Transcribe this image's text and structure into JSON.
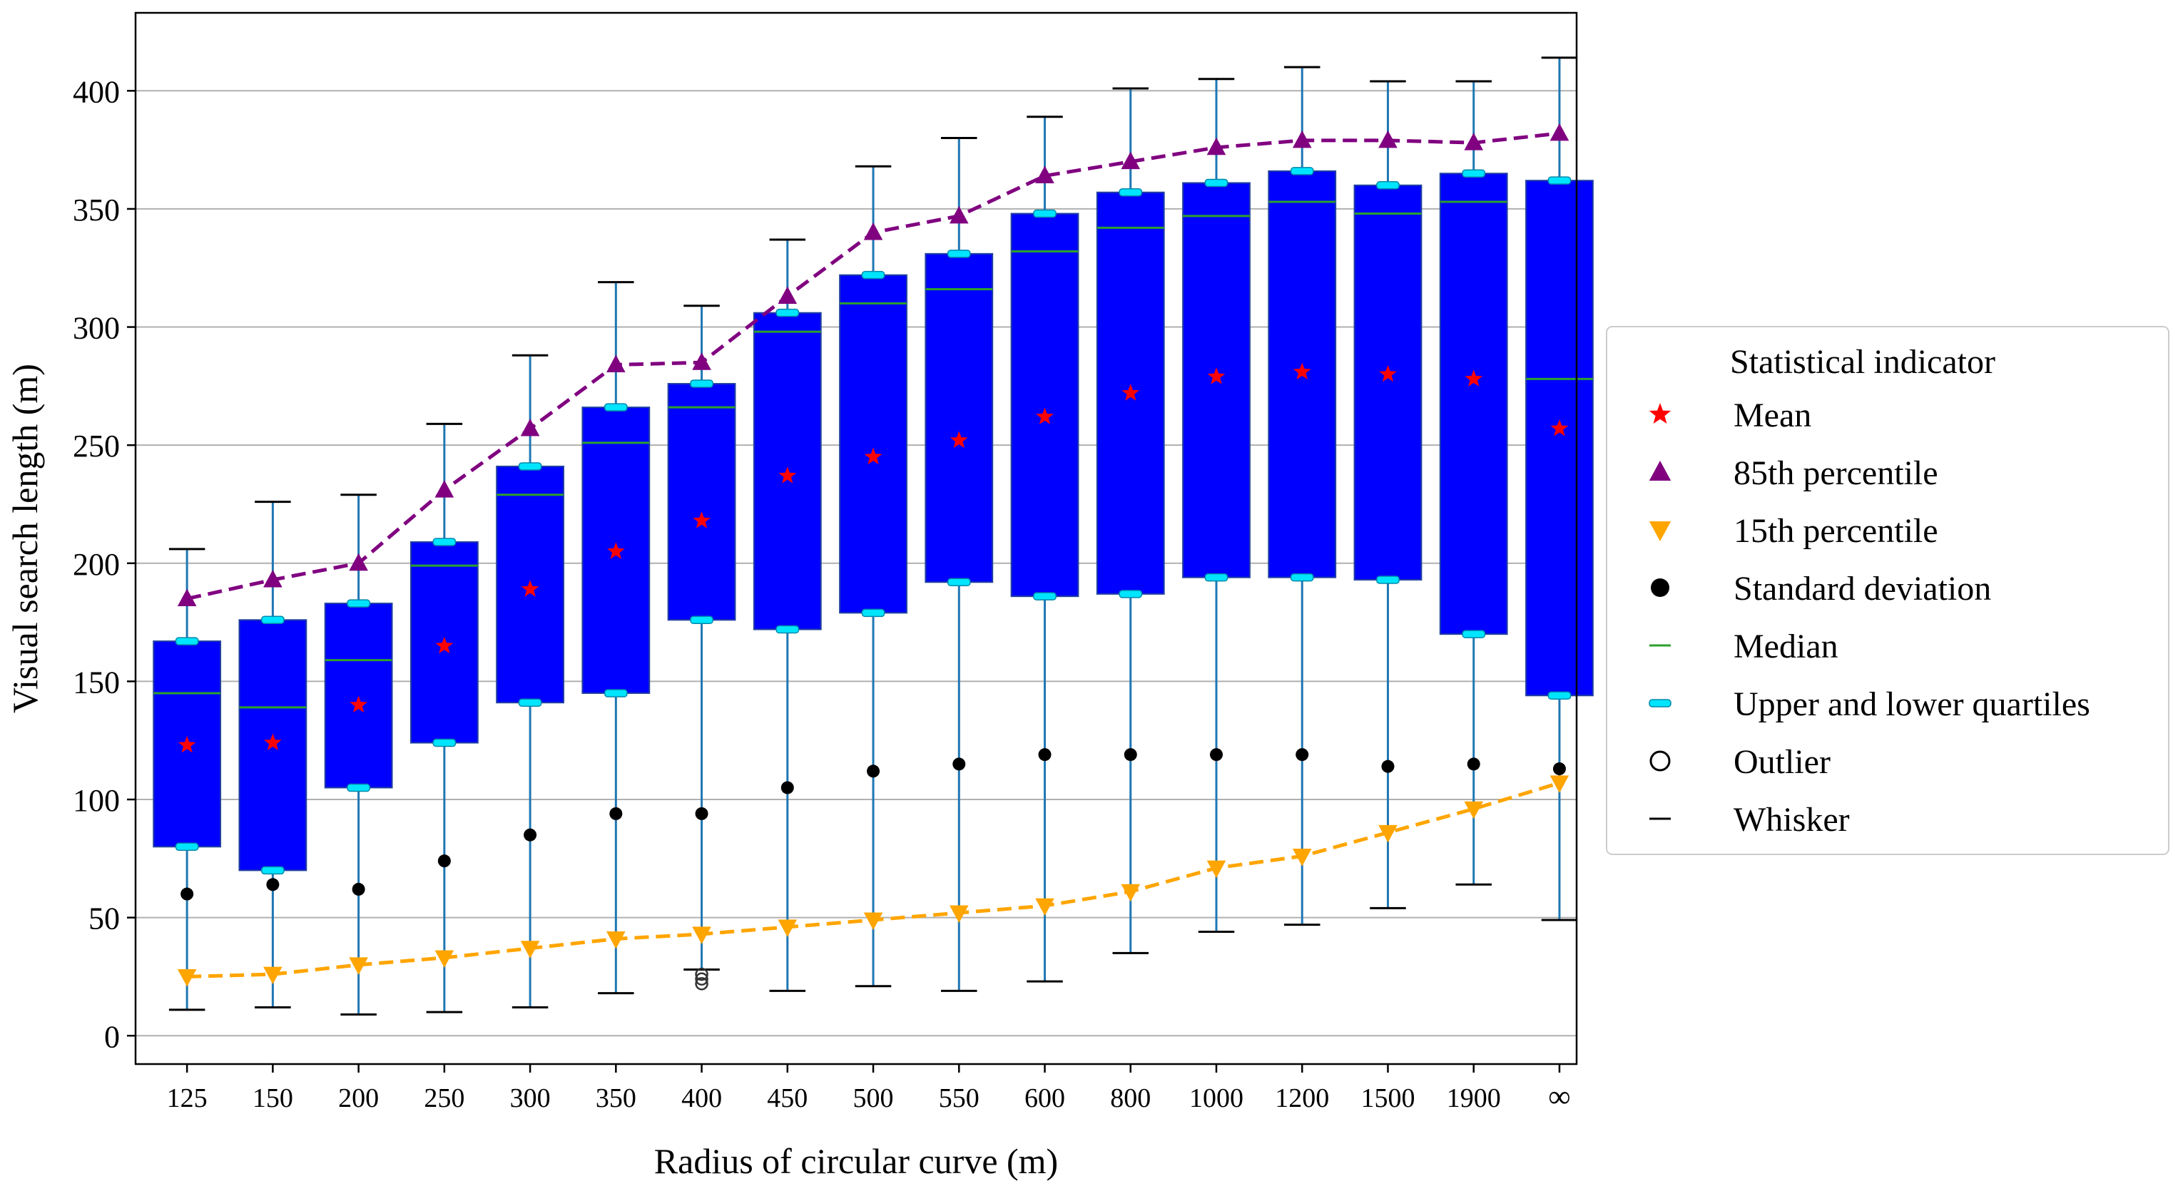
{
  "colors": {
    "box": "#0000ff",
    "whisker": "#1f77b4",
    "cap": "#000000",
    "median": "#2ca02c",
    "quartile": "#00e5ff",
    "mean": "#ff0000",
    "p85": "#800080",
    "p15": "#ffa500",
    "sd": "#000000",
    "grid": "#b0b0b0"
  },
  "chart_data": {
    "type": "box",
    "title": "",
    "xlabel": "Radius of circular curve (m)",
    "ylabel": "Visual search length (m)",
    "ylim": [
      -12,
      433
    ],
    "yticks": [
      0,
      50,
      100,
      150,
      200,
      250,
      300,
      350,
      400
    ],
    "grid": "horizontal",
    "categories": [
      "125",
      "150",
      "200",
      "250",
      "300",
      "350",
      "400",
      "450",
      "500",
      "550",
      "600",
      "800",
      "1000",
      "1200",
      "1500",
      "1900",
      "∞"
    ],
    "whisker_low": [
      11,
      12,
      9,
      10,
      12,
      18,
      28,
      19,
      21,
      19,
      23,
      35,
      44,
      47,
      54,
      64,
      49
    ],
    "q1": [
      80,
      70,
      105,
      124,
      141,
      145,
      176,
      172,
      179,
      192,
      186,
      187,
      194,
      194,
      193,
      170,
      144
    ],
    "median": [
      145,
      139,
      159,
      199,
      229,
      251,
      266,
      298,
      310,
      316,
      332,
      342,
      347,
      353,
      348,
      353,
      278
    ],
    "q3": [
      167,
      176,
      183,
      209,
      241,
      266,
      276,
      306,
      322,
      331,
      348,
      357,
      361,
      366,
      360,
      365,
      362
    ],
    "whisker_high": [
      206,
      226,
      229,
      259,
      288,
      319,
      309,
      337,
      368,
      380,
      389,
      401,
      405,
      410,
      404,
      404,
      414
    ],
    "mean": [
      123,
      124,
      140,
      165,
      189,
      205,
      218,
      237,
      245,
      252,
      262,
      272,
      279,
      281,
      280,
      278,
      257
    ],
    "p85": [
      185,
      193,
      200,
      231,
      257,
      284,
      285,
      313,
      340,
      347,
      364,
      370,
      376,
      379,
      379,
      378,
      382
    ],
    "p15": [
      25,
      26,
      30,
      33,
      37,
      41,
      43,
      46,
      49,
      52,
      55,
      61,
      71,
      76,
      86,
      96,
      107
    ],
    "std": [
      60,
      64,
      62,
      74,
      85,
      94,
      94,
      105,
      112,
      115,
      119,
      119,
      119,
      119,
      114,
      115,
      113
    ],
    "outliers": [
      {
        "category": "400",
        "values": [
          22,
          24,
          26
        ]
      }
    ],
    "legend": {
      "title": "Statistical indicator",
      "position": "right-center",
      "items": [
        {
          "key": "mean",
          "label": "Mean"
        },
        {
          "key": "p85",
          "label": "85th percentile"
        },
        {
          "key": "p15",
          "label": "15th percentile"
        },
        {
          "key": "sd",
          "label": "Standard deviation"
        },
        {
          "key": "median",
          "label": "Median"
        },
        {
          "key": "quartile",
          "label": "Upper and lower quartiles"
        },
        {
          "key": "outlier",
          "label": "Outlier"
        },
        {
          "key": "whisker",
          "label": "Whisker"
        }
      ]
    }
  }
}
